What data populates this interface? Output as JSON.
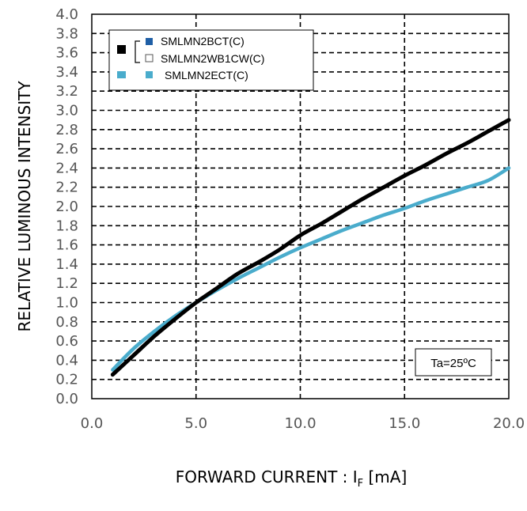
{
  "chart_data": {
    "type": "line",
    "xlabel_main": "FORWARD CURRENT : I",
    "xlabel_sub": "F",
    "xlabel_unit": " [mA]",
    "ylabel": "RELATIVE LUMINOUS INTENSITY",
    "xlim": [
      0,
      20
    ],
    "ylim": [
      0,
      4.0
    ],
    "x_ticks": [
      "0.0",
      "5.0",
      "10.0",
      "15.0",
      "20.0"
    ],
    "y_ticks": [
      "0.0",
      "0.2",
      "0.4",
      "0.6",
      "0.8",
      "1.0",
      "1.2",
      "1.4",
      "1.6",
      "1.8",
      "2.0",
      "2.2",
      "2.4",
      "2.6",
      "2.8",
      "3.0",
      "3.2",
      "3.4",
      "3.6",
      "3.8",
      "4.0"
    ],
    "grid": true,
    "annotation": "Ta=25ºC",
    "legend_position": "top-left",
    "legend": [
      {
        "label": "SMLMN2BCT(C)",
        "marker_color": "#1f5fa6"
      },
      {
        "label": "SMLMN2WB1CW(C)",
        "marker_color": "#ffffff"
      },
      {
        "label": "SMLMN2ECT(C)",
        "marker_color": "#4aaccc"
      }
    ],
    "series": [
      {
        "color": "#000000",
        "points": [
          [
            1,
            0.25
          ],
          [
            2,
            0.45
          ],
          [
            3,
            0.65
          ],
          [
            4,
            0.83
          ],
          [
            5,
            1.0
          ],
          [
            6,
            1.15
          ],
          [
            7,
            1.3
          ],
          [
            8,
            1.42
          ],
          [
            9,
            1.55
          ],
          [
            10,
            1.7
          ],
          [
            11,
            1.82
          ],
          [
            12,
            1.95
          ],
          [
            13,
            2.08
          ],
          [
            14,
            2.2
          ],
          [
            15,
            2.32
          ],
          [
            16,
            2.43
          ],
          [
            17,
            2.55
          ],
          [
            18,
            2.66
          ],
          [
            19,
            2.78
          ],
          [
            20,
            2.9
          ]
        ]
      },
      {
        "color": "#4aaccc",
        "points": [
          [
            1,
            0.3
          ],
          [
            2,
            0.52
          ],
          [
            3,
            0.7
          ],
          [
            4,
            0.86
          ],
          [
            5,
            1.0
          ],
          [
            6,
            1.13
          ],
          [
            7,
            1.25
          ],
          [
            8,
            1.36
          ],
          [
            9,
            1.47
          ],
          [
            10,
            1.57
          ],
          [
            11,
            1.66
          ],
          [
            12,
            1.75
          ],
          [
            13,
            1.83
          ],
          [
            14,
            1.91
          ],
          [
            15,
            1.98
          ],
          [
            16,
            2.06
          ],
          [
            17,
            2.13
          ],
          [
            18,
            2.2
          ],
          [
            19,
            2.27
          ],
          [
            20,
            2.4
          ]
        ]
      }
    ]
  }
}
